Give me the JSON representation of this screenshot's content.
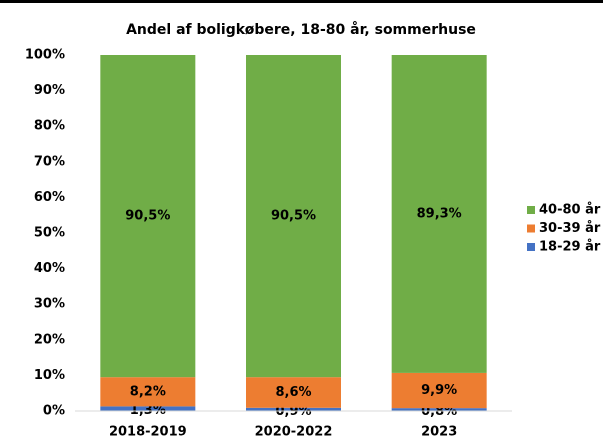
{
  "chart_data": {
    "type": "stacked_bar",
    "title": "Andel af boligkøbere, 18-80 år, sommerhuse",
    "categories": [
      "2018-2019",
      "2020-2022",
      "2023"
    ],
    "series": [
      {
        "name": "18-29 år",
        "color": "#4472c4",
        "values": [
          1.3,
          0.9,
          0.8
        ],
        "value_labels": [
          "1,3%",
          "0,9%",
          "0,8%"
        ]
      },
      {
        "name": "30-39 år",
        "color": "#ed7d31",
        "values": [
          8.2,
          8.6,
          9.9
        ],
        "value_labels": [
          "8,2%",
          "8,6%",
          "9,9%"
        ]
      },
      {
        "name": "40-80 år",
        "color": "#70ad47",
        "values": [
          90.5,
          90.5,
          89.3
        ],
        "value_labels": [
          "90,5%",
          "90,5%",
          "89,3%"
        ]
      }
    ],
    "ylim": [
      0,
      100
    ],
    "yticks": [
      {
        "value": 0,
        "label": "0%"
      },
      {
        "value": 10,
        "label": "10%"
      },
      {
        "value": 20,
        "label": "20%"
      },
      {
        "value": 30,
        "label": "30%"
      },
      {
        "value": 40,
        "label": "40%"
      },
      {
        "value": 50,
        "label": "50%"
      },
      {
        "value": 60,
        "label": "60%"
      },
      {
        "value": 70,
        "label": "70%"
      },
      {
        "value": 80,
        "label": "80%"
      },
      {
        "value": 90,
        "label": "90%"
      },
      {
        "value": 100,
        "label": "100%"
      }
    ],
    "legend": "right"
  }
}
